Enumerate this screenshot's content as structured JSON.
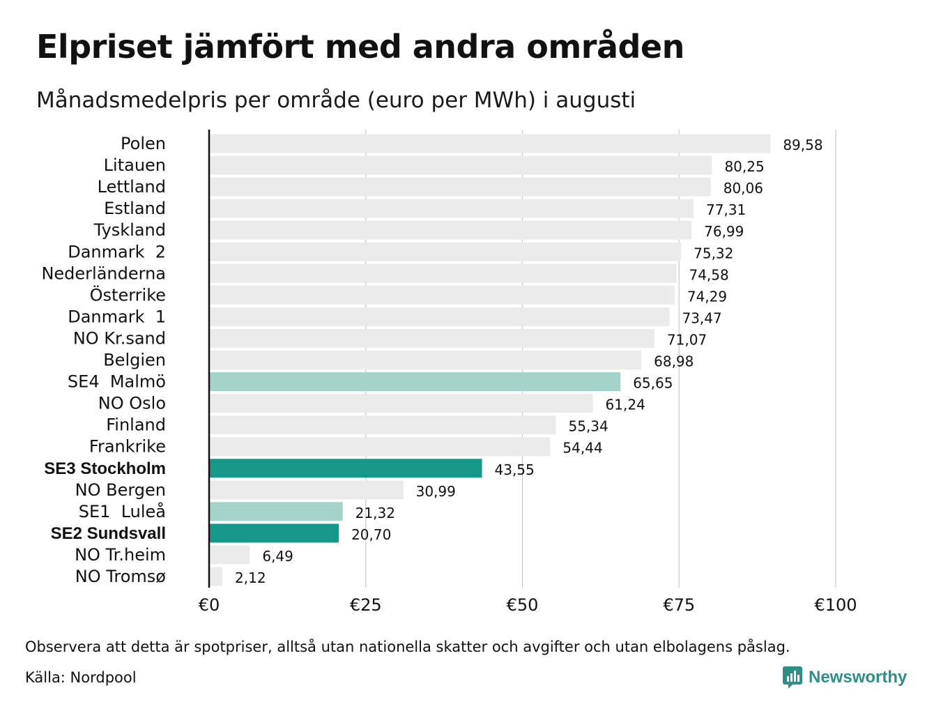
{
  "header": {
    "title": "Elpriset jämfört med andra områden",
    "subtitle": "Månadsmedelpris per område (euro per MWh) i augusti"
  },
  "footer": {
    "note": "Observera att detta är spotpriser, alltså utan nationella skatter och avgifter och utan elbolagens påslag.",
    "source": "Källa: Nordpool",
    "logo_text": "Newsworthy"
  },
  "colors": {
    "default_bar": "#ebebeb",
    "light_highlight": "#a6d2cc",
    "strong_highlight": "#15988a",
    "axis_line": "#111111",
    "grid_line": "#c9c9c9",
    "brand": "#2f8f86"
  },
  "chart_data": {
    "type": "bar",
    "orientation": "horizontal",
    "title": "Elpriset jämfört med andra områden",
    "subtitle": "Månadsmedelpris per område (euro per MWh) i augusti",
    "xlim": [
      0,
      100
    ],
    "ticks": [
      0,
      25,
      50,
      75,
      100
    ],
    "tick_labels": [
      "€0",
      "€25",
      "€50",
      "€75",
      "€100"
    ],
    "grid": true,
    "categories": [
      "Polen",
      "Litauen",
      "Lettland",
      "Estland",
      "Tyskland",
      "Danmark  2",
      "Nederländerna",
      "Österrike",
      "Danmark  1",
      "NO Kr.sand",
      "Belgien",
      "SE4  Malmö",
      "NO Oslo",
      "Finland",
      "Frankrike",
      "SE3 Stockholm",
      "NO Bergen",
      "SE1  Luleå",
      "SE2 Sundsvall",
      "NO Tr.heim",
      "NO Tromsø"
    ],
    "values": [
      89.58,
      80.25,
      80.06,
      77.31,
      76.99,
      75.32,
      74.58,
      74.29,
      73.47,
      71.07,
      68.98,
      65.65,
      61.24,
      55.34,
      54.44,
      43.55,
      30.99,
      21.32,
      20.7,
      6.49,
      2.12
    ],
    "value_labels": [
      "89,58",
      "80,25",
      "80,06",
      "77,31",
      "76,99",
      "75,32",
      "74,58",
      "74,29",
      "73,47",
      "71,07",
      "68,98",
      "65,65",
      "61,24",
      "55,34",
      "54,44",
      "43,55",
      "30,99",
      "21,32",
      "20,70",
      "6,49",
      "2,12"
    ],
    "highlight": [
      "none",
      "none",
      "none",
      "none",
      "none",
      "none",
      "none",
      "none",
      "none",
      "none",
      "none",
      "light",
      "none",
      "none",
      "none",
      "strong",
      "none",
      "light",
      "strong",
      "none",
      "none"
    ],
    "bold_labels": [
      "SE3 Stockholm",
      "SE2 Sundsvall"
    ]
  }
}
